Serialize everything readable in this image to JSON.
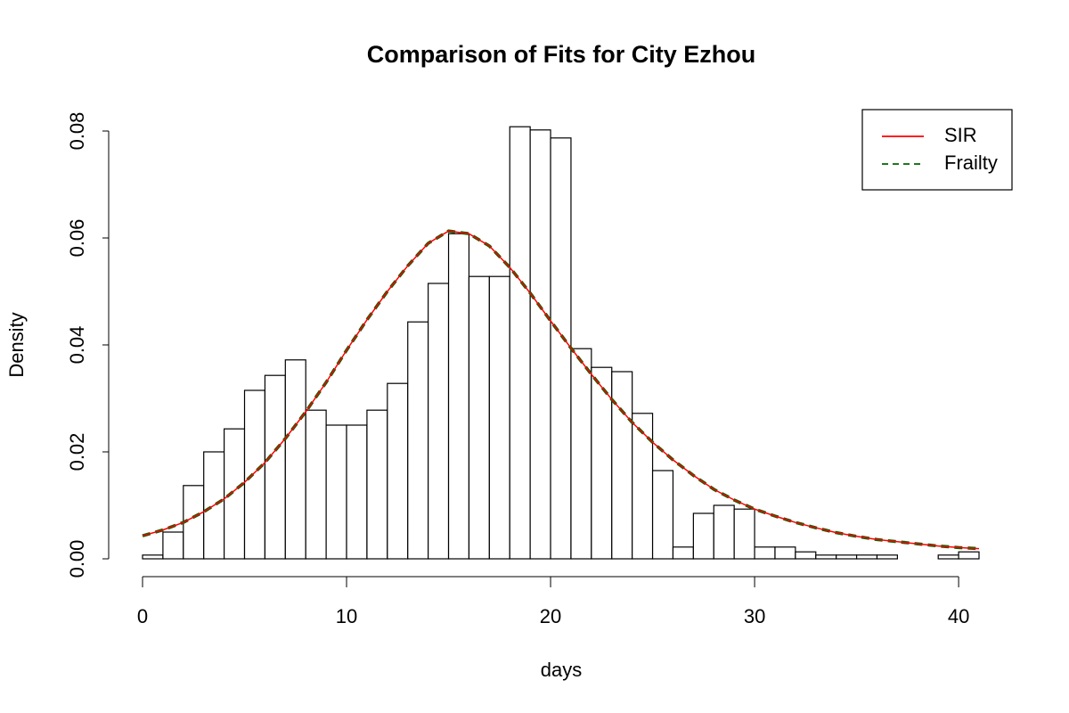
{
  "chart_data": {
    "type": "histogram",
    "title": "Comparison of Fits for City Ezhou",
    "xlabel": "days",
    "ylabel": "Density",
    "bins": [
      0,
      1,
      2,
      3,
      4,
      5,
      6,
      7,
      8,
      9,
      10,
      11,
      12,
      13,
      14,
      15,
      16,
      17,
      18,
      19,
      20,
      21,
      22,
      23,
      24,
      25,
      26,
      27,
      28,
      29,
      30,
      31,
      32,
      33,
      34,
      35,
      36,
      37,
      38,
      39,
      40,
      41
    ],
    "values": [
      0.0007,
      0.005,
      0.0137,
      0.02,
      0.0243,
      0.0315,
      0.0343,
      0.0372,
      0.0278,
      0.025,
      0.025,
      0.0278,
      0.0328,
      0.0443,
      0.0515,
      0.0608,
      0.0528,
      0.0528,
      0.0808,
      0.0802,
      0.0787,
      0.0393,
      0.0358,
      0.035,
      0.0272,
      0.0165,
      0.0022,
      0.0085,
      0.01,
      0.0093,
      0.0022,
      0.0022,
      0.0013,
      0.0007,
      0.0007,
      0.0007,
      0.0007,
      0,
      0,
      0.0007,
      0.0013
    ],
    "color": "#ffffff",
    "series": [
      {
        "name": "SIR",
        "color": "#ff0000",
        "dash": "solid",
        "x": [
          0,
          1,
          2,
          3,
          4,
          5,
          6,
          7,
          8,
          9,
          10,
          11,
          12,
          13,
          14,
          15,
          16,
          17,
          18,
          19,
          20,
          21,
          22,
          23,
          24,
          25,
          26,
          27,
          28,
          29,
          30,
          31,
          32,
          33,
          34,
          35,
          36,
          37,
          38,
          39,
          40,
          41
        ],
        "values": [
          0.0043,
          0.0054,
          0.0068,
          0.0088,
          0.0112,
          0.0143,
          0.018,
          0.0225,
          0.0275,
          0.033,
          0.039,
          0.0447,
          0.05,
          0.0548,
          0.059,
          0.0613,
          0.0608,
          0.0585,
          0.0545,
          0.0497,
          0.0445,
          0.0394,
          0.0345,
          0.0298,
          0.0255,
          0.0218,
          0.0185,
          0.0156,
          0.013,
          0.011,
          0.0093,
          0.008,
          0.0068,
          0.0058,
          0.0049,
          0.0042,
          0.0036,
          0.0032,
          0.0028,
          0.0024,
          0.0021,
          0.0019
        ]
      },
      {
        "name": "Frailty",
        "color": "#006400",
        "dash": "dashed",
        "x": [
          0,
          1,
          2,
          3,
          4,
          5,
          6,
          7,
          8,
          9,
          10,
          11,
          12,
          13,
          14,
          15,
          16,
          17,
          18,
          19,
          20,
          21,
          22,
          23,
          24,
          25,
          26,
          27,
          28,
          29,
          30,
          31,
          32,
          33,
          34,
          35,
          36,
          37,
          38,
          39,
          40,
          41
        ],
        "values": [
          0.0043,
          0.0054,
          0.0068,
          0.0088,
          0.0112,
          0.0143,
          0.018,
          0.0225,
          0.0275,
          0.033,
          0.039,
          0.0447,
          0.05,
          0.0548,
          0.059,
          0.0613,
          0.0608,
          0.0585,
          0.0545,
          0.0497,
          0.0445,
          0.0394,
          0.0345,
          0.0298,
          0.0255,
          0.0218,
          0.0185,
          0.0156,
          0.013,
          0.011,
          0.0093,
          0.008,
          0.0068,
          0.0058,
          0.0049,
          0.0042,
          0.0036,
          0.0032,
          0.0028,
          0.0024,
          0.0021,
          0.0019
        ]
      }
    ],
    "xlim": [
      0,
      41
    ],
    "xticks": [
      0,
      10,
      20,
      30,
      40
    ],
    "ylim": [
      0,
      0.08
    ],
    "yticks": [
      {
        "value": 0,
        "label": "0.00"
      },
      0.02,
      0.04,
      0.06,
      0.08
    ],
    "legend": "top-right"
  }
}
